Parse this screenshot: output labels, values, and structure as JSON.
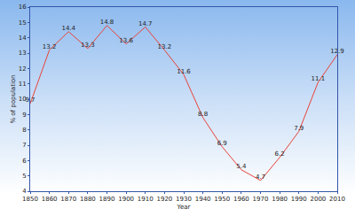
{
  "chart_data": {
    "type": "line",
    "x": [
      1850,
      1860,
      1870,
      1880,
      1890,
      1900,
      1910,
      1920,
      1930,
      1940,
      1950,
      1960,
      1970,
      1980,
      1990,
      2000,
      2010
    ],
    "values": [
      9.7,
      13.2,
      14.4,
      13.3,
      14.8,
      13.6,
      14.7,
      13.2,
      11.6,
      8.8,
      6.9,
      5.4,
      4.7,
      6.2,
      7.9,
      11.1,
      12.9
    ],
    "color": "#e8433a",
    "x_label": "Year",
    "y_label": "% of population",
    "xlim": [
      1850,
      2010
    ],
    "xticks": [
      1850,
      1860,
      1870,
      1880,
      1890,
      1900,
      1910,
      1920,
      1930,
      1940,
      1950,
      1960,
      1970,
      1980,
      1990,
      2000,
      2010
    ],
    "ylim": [
      4,
      16
    ],
    "yticks": [
      4,
      5,
      6,
      7,
      8,
      9,
      10,
      11,
      12,
      13,
      14,
      15,
      16
    ],
    "grid": false,
    "data_labels": true
  }
}
